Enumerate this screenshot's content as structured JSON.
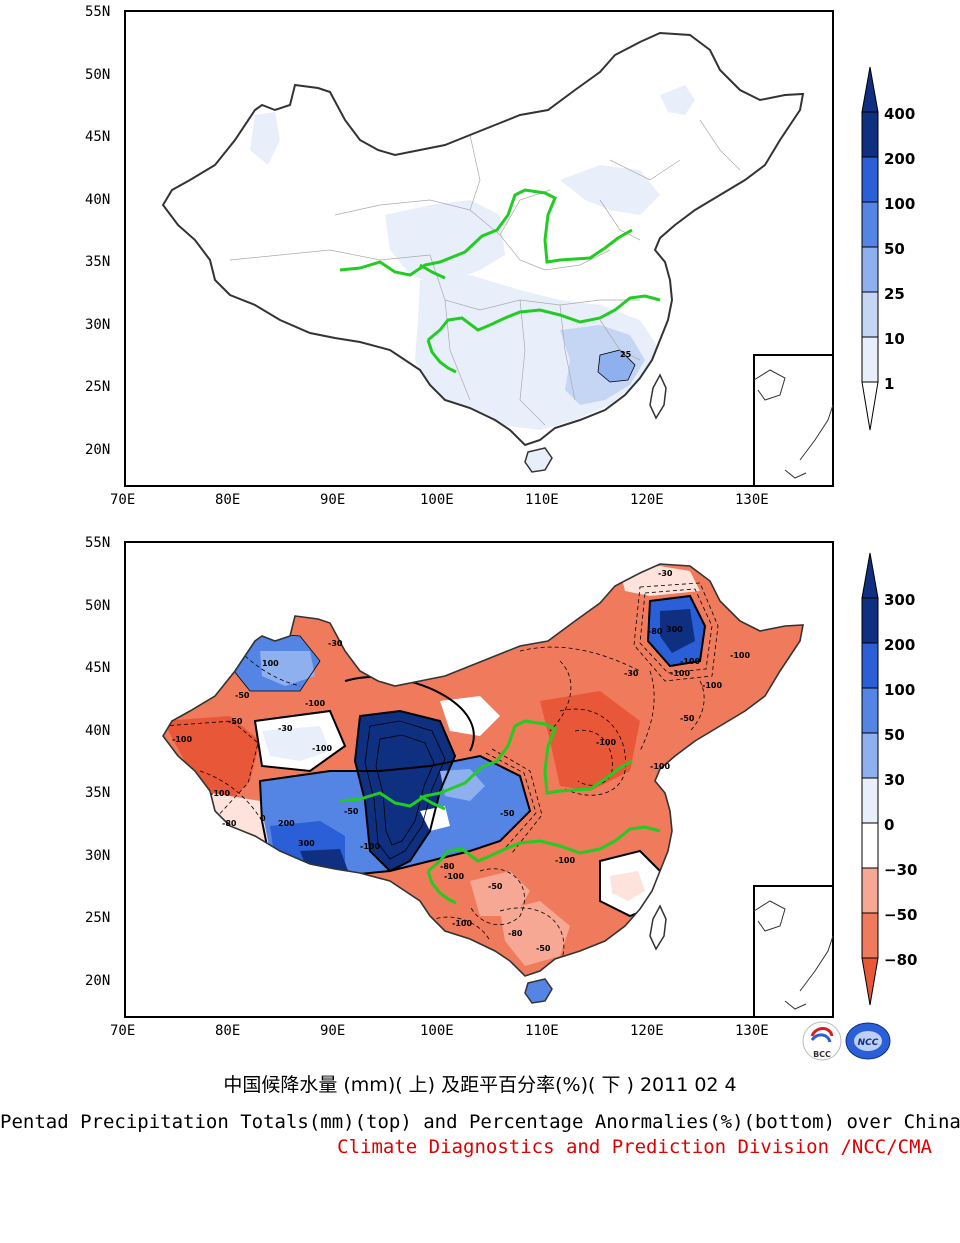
{
  "colors": {
    "river": "#22cc22",
    "title_credit": "#e00000",
    "blues": [
      "#ffffff",
      "#e8effb",
      "#c5d6f5",
      "#8fb0ee",
      "#5484e4",
      "#2a5fd7",
      "#0f2f80"
    ],
    "reds": [
      "#ffffff",
      "#fde3dc",
      "#f6a894",
      "#ef7a5c",
      "#e85838"
    ]
  },
  "top_panel": {
    "y_labels": [
      "55N",
      "50N",
      "45N",
      "40N",
      "35N",
      "30N",
      "25N",
      "20N"
    ],
    "x_labels": [
      "70E",
      "80E",
      "90E",
      "100E",
      "110E",
      "120E",
      "130E"
    ],
    "colorbar_labels": [
      "400",
      "200",
      "100",
      "50",
      "25",
      "10",
      "1"
    ],
    "contour_labels": [
      "25"
    ]
  },
  "bottom_panel": {
    "y_labels": [
      "55N",
      "50N",
      "45N",
      "40N",
      "35N",
      "30N",
      "25N",
      "20N"
    ],
    "x_labels": [
      "70E",
      "80E",
      "90E",
      "100E",
      "110E",
      "120E",
      "130E"
    ],
    "colorbar_labels": [
      "300",
      "200",
      "100",
      "50",
      "30",
      "0",
      "−30",
      "−50",
      "−80"
    ],
    "contour_labels": [
      "-100",
      "-30",
      "-80",
      "-50",
      "-100",
      "300",
      "100",
      "-100",
      "-50",
      "200",
      "-30",
      "-100",
      "0",
      "-80",
      "-50",
      "-50",
      "-100",
      "-100",
      "300",
      "-100",
      "-100",
      "-50",
      "-100",
      "-100",
      "-30",
      "-100",
      "-80",
      "-100",
      "-50",
      "-80",
      "-100",
      "-50",
      "-100",
      "-30"
    ]
  },
  "logos": {
    "left": "BCC",
    "right": "NCC"
  },
  "title_cn": "中国候降水量 (mm)( 上) 及距平百分率(%)( 下 ) 2011 02 4",
  "title_en": "Pentad Precipitation Totals(mm)(top) and Percentage Anormalies(%)(bottom) over China",
  "credit": "Climate Diagnostics and Prediction Division /NCC/CMA"
}
